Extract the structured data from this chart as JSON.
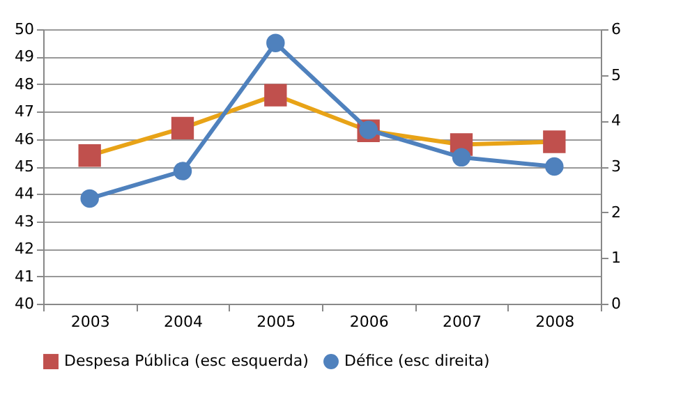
{
  "chart_data": {
    "type": "line",
    "categories": [
      "2003",
      "2004",
      "2005",
      "2006",
      "2007",
      "2008"
    ],
    "series": [
      {
        "name": "Despesa Pública (esc esquerda)",
        "color": "#e8a317",
        "colors": [
          "#c0504d",
          "#c0504d",
          "#c0504d",
          "#c0504d",
          "#c0504d",
          "#c0504d"
        ],
        "marker": "square",
        "values": [
          45.4,
          46.4,
          47.6,
          46.3,
          45.8,
          45.9
        ]
      },
      {
        "name": "Défice (esc direita)",
        "color": "#4f81bd",
        "marker": "circle",
        "axis": "y2",
        "values": [
          2.3,
          2.9,
          5.7,
          3.8,
          3.2,
          3.0
        ]
      }
    ],
    "ylim": [
      40,
      50
    ],
    "yticks": [
      40,
      41,
      42,
      43,
      44,
      45,
      46,
      47,
      48,
      49,
      50
    ],
    "y2lim": [
      0,
      6
    ],
    "y2ticks": [
      0,
      1,
      2,
      3,
      4,
      5,
      6
    ],
    "grid": "y",
    "legend": "bottom",
    "line_style": "solid"
  }
}
